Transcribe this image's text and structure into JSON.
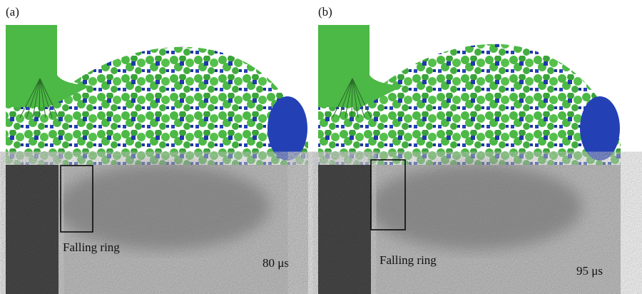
{
  "panels": [
    {
      "label": "(a)",
      "annotation": "Falling ring",
      "time": "80 μs"
    },
    {
      "label": "(b)",
      "annotation": "Falling ring",
      "time": "95 μs"
    }
  ]
}
